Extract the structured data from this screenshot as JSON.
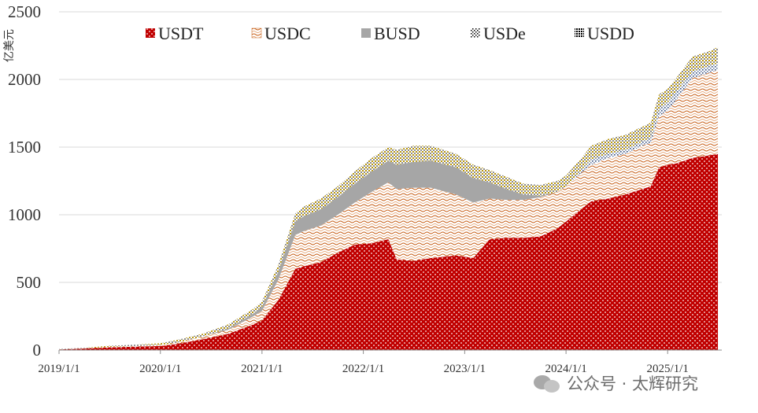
{
  "chart_data": {
    "type": "area",
    "stacked": true,
    "ylabel": "亿美元",
    "xlabel": "",
    "ylim": [
      0,
      2500
    ],
    "yticks": [
      0,
      500,
      1000,
      1500,
      2000,
      2500
    ],
    "xlim": [
      "2019-01-01",
      "2025-07-15"
    ],
    "xticks": [
      "2019/1/1",
      "2020/1/1",
      "2021/1/1",
      "2022/1/1",
      "2023/1/1",
      "2024/1/1",
      "2025/1/1"
    ],
    "legend_position": "top",
    "grid": "horizontal",
    "x": [
      "2019-01",
      "2019-04",
      "2019-07",
      "2019-10",
      "2020-01",
      "2020-03",
      "2020-06",
      "2020-09",
      "2020-12",
      "2021-01",
      "2021-03",
      "2021-05",
      "2021-06",
      "2021-08",
      "2021-10",
      "2021-12",
      "2022-02",
      "2022-04",
      "2022-05",
      "2022-07",
      "2022-09",
      "2022-12",
      "2023-02",
      "2023-04",
      "2023-06",
      "2023-08",
      "2023-10",
      "2023-12",
      "2024-01",
      "2024-03",
      "2024-04",
      "2024-06",
      "2024-08",
      "2024-10",
      "2024-11",
      "2024-12",
      "2025-01",
      "2025-02",
      "2025-04",
      "2025-06",
      "2025-07"
    ],
    "series": [
      {
        "name": "USDT",
        "color": "#c00000",
        "values": [
          4,
          10,
          20,
          25,
          30,
          45,
          80,
          120,
          190,
          220,
          370,
          600,
          620,
          650,
          720,
          780,
          790,
          820,
          670,
          660,
          680,
          700,
          680,
          820,
          830,
          830,
          840,
          900,
          950,
          1050,
          1100,
          1120,
          1150,
          1190,
          1210,
          1350,
          1370,
          1380,
          1420,
          1440,
          1450
        ]
      },
      {
        "name": "USDC",
        "color": "#c55a11",
        "values": [
          1,
          2,
          3,
          5,
          8,
          10,
          20,
          30,
          60,
          70,
          150,
          250,
          260,
          270,
          280,
          310,
          380,
          420,
          520,
          540,
          520,
          450,
          410,
          300,
          280,
          280,
          290,
          270,
          260,
          270,
          270,
          300,
          300,
          320,
          320,
          380,
          400,
          470,
          590,
          610,
          620
        ]
      },
      {
        "name": "BUSD",
        "color": "#a6a6a6",
        "values": [
          0,
          0,
          0,
          0,
          0,
          0,
          0,
          10,
          20,
          30,
          60,
          100,
          110,
          120,
          130,
          140,
          150,
          160,
          180,
          190,
          200,
          200,
          180,
          120,
          80,
          40,
          10,
          0,
          0,
          0,
          0,
          0,
          0,
          0,
          0,
          0,
          0,
          0,
          0,
          0,
          0
        ]
      },
      {
        "name": "USDe",
        "color": "#2e4a7a",
        "values": [
          0,
          0,
          0,
          0,
          0,
          0,
          0,
          0,
          0,
          0,
          0,
          0,
          0,
          0,
          0,
          0,
          0,
          0,
          0,
          0,
          0,
          0,
          0,
          0,
          0,
          0,
          0,
          0,
          0,
          20,
          40,
          30,
          30,
          30,
          40,
          50,
          60,
          60,
          50,
          50,
          50
        ]
      },
      {
        "name": "USDD",
        "color": "#b8960c",
        "values": [
          3,
          5,
          8,
          10,
          12,
          20,
          20,
          30,
          35,
          40,
          50,
          60,
          70,
          80,
          80,
          90,
          100,
          100,
          110,
          120,
          110,
          100,
          100,
          90,
          90,
          80,
          80,
          80,
          80,
          90,
          100,
          110,
          110,
          110,
          110,
          110,
          100,
          100,
          110,
          110,
          120
        ]
      }
    ]
  },
  "watermark": {
    "text": "公众号 · 太辉研究"
  }
}
